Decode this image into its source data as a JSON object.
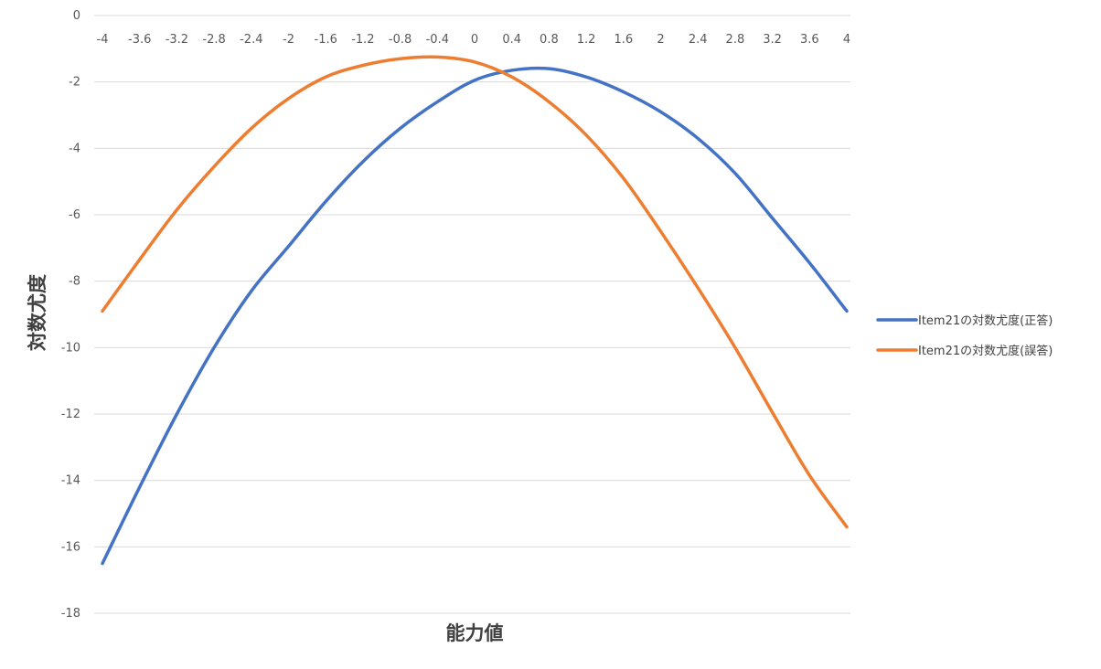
{
  "chart_data": {
    "type": "line",
    "xlabel": "能力値",
    "ylabel": "対数尤度",
    "title": "",
    "ylim": [
      -18,
      0
    ],
    "yticks": [
      0,
      -2,
      -4,
      -6,
      -8,
      -10,
      -12,
      -14,
      -16,
      -18
    ],
    "x_ticks": [
      "-4",
      "-3.6",
      "-3.2",
      "-2.8",
      "-2.4",
      "-2",
      "-1.6",
      "-1.2",
      "-0.8",
      "-0.4",
      "0",
      "0.4",
      "0.8",
      "1.2",
      "1.6",
      "2",
      "2.4",
      "2.8",
      "3.2",
      "3.6",
      "4"
    ],
    "x": [
      -4,
      -3.6,
      -3.2,
      -2.8,
      -2.4,
      -2,
      -1.6,
      -1.2,
      -0.8,
      -0.4,
      0,
      0.4,
      0.8,
      1.2,
      1.6,
      2,
      2.4,
      2.8,
      3.2,
      3.6,
      4
    ],
    "grid": true,
    "legend_position": "right",
    "series": [
      {
        "name": "Item21の対数尤度(正答)",
        "color": "#4472C4",
        "values": [
          -16.5,
          -14.2,
          -12.0,
          -10.0,
          -8.3,
          -6.95,
          -5.6,
          -4.4,
          -3.4,
          -2.6,
          -1.95,
          -1.65,
          -1.6,
          -1.85,
          -2.3,
          -2.9,
          -3.7,
          -4.75,
          -6.1,
          -7.45,
          -8.9
        ]
      },
      {
        "name": "Item21の対数尤度(誤答)",
        "color": "#ED7D31",
        "values": [
          -8.9,
          -7.35,
          -5.85,
          -4.55,
          -3.4,
          -2.5,
          -1.85,
          -1.5,
          -1.3,
          -1.25,
          -1.4,
          -1.85,
          -2.6,
          -3.6,
          -4.9,
          -6.5,
          -8.2,
          -10.0,
          -11.95,
          -13.85,
          -15.4
        ]
      }
    ]
  }
}
